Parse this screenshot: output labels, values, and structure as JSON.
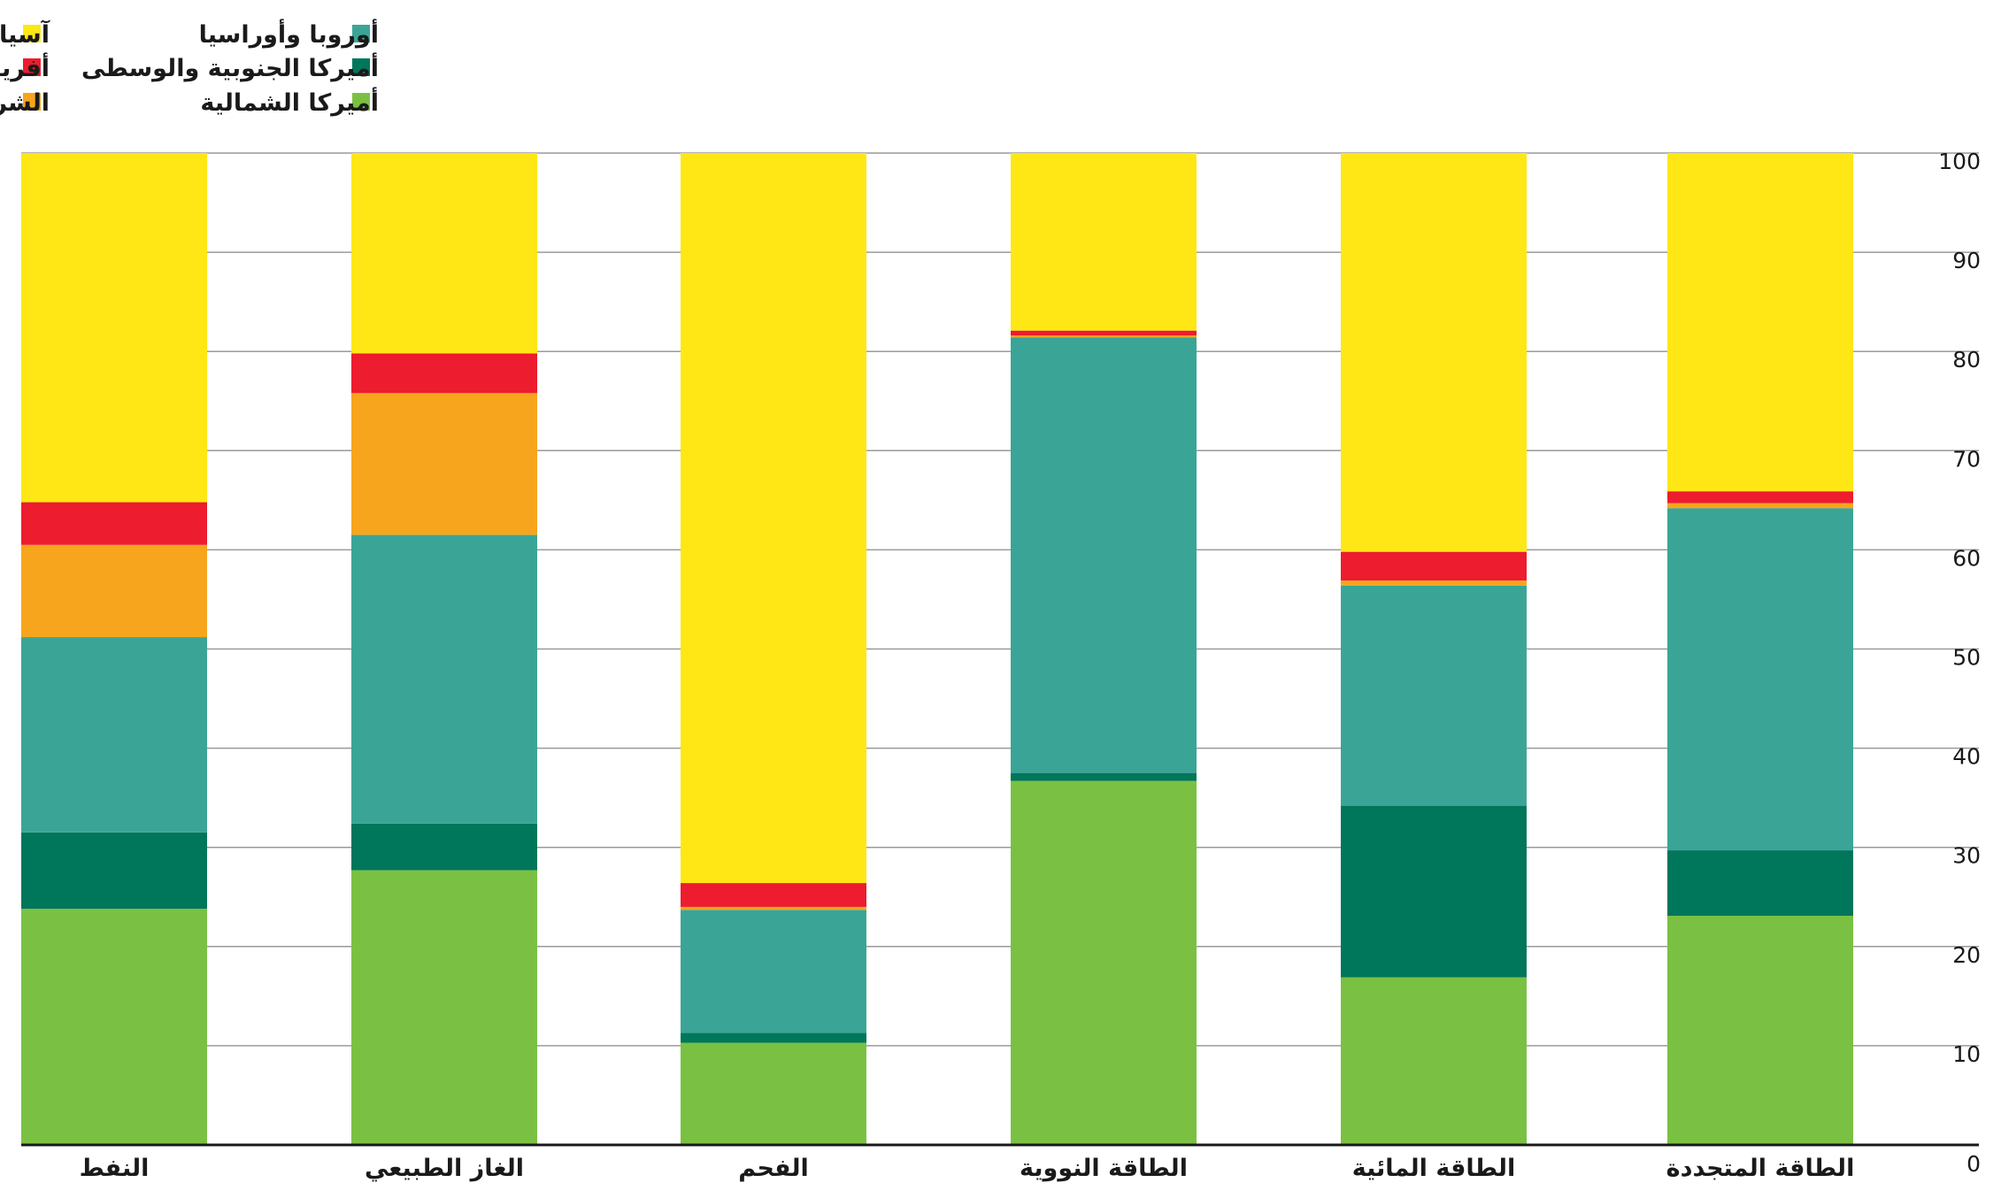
{
  "chart_data": {
    "type": "bar",
    "stacked": true,
    "title": "",
    "xlabel": "",
    "ylabel": "",
    "ylim": [
      0,
      100
    ],
    "yticks": [
      0,
      10,
      20,
      30,
      40,
      50,
      60,
      70,
      80,
      90,
      100
    ],
    "grid": true,
    "legend_position": "top-left",
    "categories": [
      "النفط",
      "الغاز الطبيعي",
      "الفحم",
      "الطاقة النووية",
      "الطاقة المائية",
      "الطاقة المتجددة"
    ],
    "series": [
      {
        "name": "أميركا الشمالية",
        "color": "#7AC143",
        "values": [
          23.8,
          27.7,
          10.3,
          36.7,
          16.9,
          23.1
        ]
      },
      {
        "name": "أميركا الجنوبية والوسطى",
        "color": "#00765A",
        "values": [
          7.7,
          4.7,
          1.0,
          0.8,
          17.3,
          6.6
        ]
      },
      {
        "name": "أوروبا وأوراسيا",
        "color": "#3AA597",
        "values": [
          19.7,
          29.1,
          12.4,
          43.9,
          22.2,
          34.5
        ]
      },
      {
        "name": "الشرق الأوسط",
        "color": "#F7A51C",
        "values": [
          9.3,
          14.3,
          0.3,
          0.2,
          0.5,
          0.5
        ]
      },
      {
        "name": "أفريقيا",
        "color": "#ED1C2E",
        "values": [
          4.3,
          4.0,
          2.4,
          0.5,
          2.9,
          1.2
        ]
      },
      {
        "name": "آسيا والمحيط الهادئ",
        "color": "#FEE715",
        "values": [
          35.2,
          20.2,
          73.6,
          17.9,
          40.2,
          34.1
        ]
      }
    ]
  }
}
